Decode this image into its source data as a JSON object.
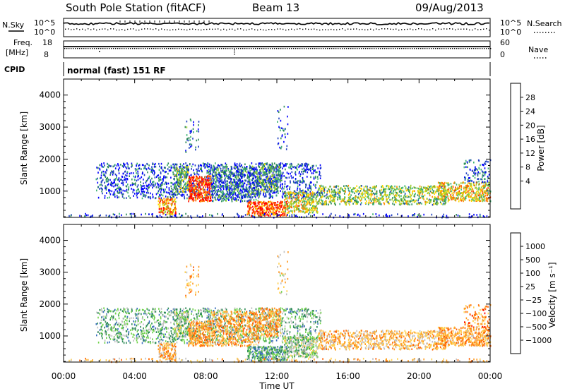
{
  "header": {
    "title": "South Pole Station (fitACF)",
    "beam": "Beam 13",
    "date": "09/Aug/2013"
  },
  "aux_labels": {
    "nsky": "N.Sky",
    "nsearch": "N.Search",
    "freq_line1": "Freq.",
    "freq_line2": "[MHz]",
    "nave": "Nave",
    "cpid": "CPID",
    "tick_1e5": "10^5",
    "tick_1e0": "10^0",
    "freq_top": "18",
    "freq_bot": "8",
    "nave_top": "60",
    "nave_bot": "0"
  },
  "cpid_text": "normal (fast) 151 RF",
  "colors": {
    "power_scale": [
      "#0000ff",
      "#2040c0",
      "#2e8b57",
      "#3cb371",
      "#9acd32",
      "#ffd700",
      "#ff8c00",
      "#ff4500",
      "#ff0000"
    ],
    "velocity_scale": [
      "#ff0000",
      "#ff6000",
      "#ff9a20",
      "#ffd050",
      "#c0c0c0",
      "#6fd34a",
      "#2e8b57",
      "#3a6fbf",
      "#1f3fbf"
    ]
  },
  "chart_data": [
    {
      "type": "heatmap",
      "title": "Power",
      "xlabel": "",
      "ylabel": "Slant Range [km]",
      "x_ticks": [
        "00:00",
        "04:00",
        "08:00",
        "12:00",
        "16:00",
        "20:00",
        "00:00"
      ],
      "y_ticks": [
        "1000",
        "2000",
        "3000",
        "4000"
      ],
      "x_range_hours": [
        0,
        24
      ],
      "y_range_km": [
        180,
        4500
      ],
      "colorbar_label": "Power [dB]",
      "colorbar_ticks": [
        "4",
        "8",
        "12",
        "16",
        "20",
        "24",
        "28"
      ],
      "colorbar_range": [
        0,
        32
      ]
    },
    {
      "type": "heatmap",
      "title": "Velocity",
      "xlabel": "Time UT",
      "ylabel": "Slant Range [km]",
      "x_ticks": [
        "00:00",
        "04:00",
        "08:00",
        "12:00",
        "16:00",
        "20:00",
        "00:00"
      ],
      "y_ticks": [
        "1000",
        "2000",
        "3000",
        "4000"
      ],
      "x_range_hours": [
        0,
        24
      ],
      "y_range_km": [
        180,
        4500
      ],
      "colorbar_label": "Velocity [m s⁻¹]",
      "colorbar_ticks": [
        "1000",
        "500",
        "100",
        "25",
        "−25",
        "−100",
        "−500",
        "−1000"
      ]
    }
  ]
}
